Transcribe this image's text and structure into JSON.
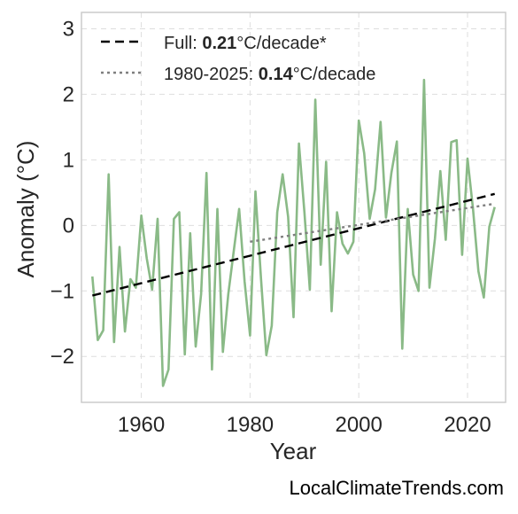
{
  "chart_data": {
    "type": "line",
    "xlabel": "Year",
    "ylabel": "Anomaly (°C)",
    "xlim": [
      1949,
      2027
    ],
    "ylim": [
      -2.7,
      3.25
    ],
    "xticks": [
      1960,
      1980,
      2000,
      2020
    ],
    "yticks": [
      3,
      2,
      1,
      0,
      -1,
      -2
    ],
    "ytick_labels": [
      "3",
      "2",
      "1",
      "0",
      "−1",
      "−2"
    ],
    "grid": true,
    "legend_position": "top-left",
    "series": [
      {
        "style": "solid",
        "color": "#8aba87",
        "x": [
          1951,
          1952,
          1953,
          1954,
          1955,
          1956,
          1957,
          1958,
          1959,
          1960,
          1961,
          1962,
          1963,
          1964,
          1965,
          1966,
          1967,
          1968,
          1969,
          1970,
          1971,
          1972,
          1973,
          1974,
          1975,
          1976,
          1977,
          1978,
          1979,
          1980,
          1981,
          1982,
          1983,
          1984,
          1985,
          1986,
          1987,
          1988,
          1989,
          1990,
          1991,
          1992,
          1993,
          1994,
          1995,
          1996,
          1997,
          1998,
          1999,
          2000,
          2001,
          2002,
          2003,
          2004,
          2005,
          2006,
          2007,
          2008,
          2009,
          2010,
          2011,
          2012,
          2013,
          2014,
          2015,
          2016,
          2017,
          2018,
          2019,
          2020,
          2021,
          2022,
          2023,
          2024,
          2025
        ],
        "y": [
          -0.78,
          -1.75,
          -1.6,
          0.78,
          -1.78,
          -0.33,
          -1.62,
          -0.82,
          -0.95,
          0.15,
          -0.5,
          -0.98,
          0.1,
          -2.45,
          -2.2,
          0.1,
          0.2,
          -1.97,
          -0.12,
          -1.85,
          -1.05,
          0.8,
          -2.2,
          0.25,
          -1.93,
          -1.05,
          -0.4,
          0.25,
          -0.85,
          -1.68,
          0.52,
          -0.8,
          -1.98,
          -1.53,
          0.2,
          0.78,
          0.13,
          -1.4,
          1.25,
          0.2,
          -0.98,
          1.92,
          -0.6,
          0.97,
          -1.31,
          0.2,
          -0.28,
          -0.43,
          -0.25,
          1.6,
          1.1,
          0.1,
          0.55,
          1.58,
          0.12,
          0.8,
          1.28,
          -1.88,
          0.25,
          -0.75,
          -1.0,
          2.22,
          -0.95,
          -0.2,
          0.83,
          -0.22,
          1.27,
          1.3,
          -0.45,
          1.02,
          0.25,
          -0.7,
          -1.1,
          -0.02,
          0.28
        ]
      },
      {
        "style": "dashed",
        "color": "#000000",
        "x": [
          1951,
          2025
        ],
        "y": [
          -1.07,
          0.48
        ]
      },
      {
        "style": "dotted",
        "color": "#7f7f7f",
        "x": [
          1980,
          2025
        ],
        "y": [
          -0.25,
          0.33
        ]
      }
    ],
    "legend": [
      {
        "style": "dashed",
        "color": "#000000",
        "prefix": "Full: ",
        "value": "0.21",
        "suffix": "°C/decade*"
      },
      {
        "style": "dotted",
        "color": "#7f7f7f",
        "prefix": "1980-2025: ",
        "value": "0.14",
        "suffix": "°C/decade"
      }
    ]
  },
  "credit": "LocalClimateTrends.com"
}
